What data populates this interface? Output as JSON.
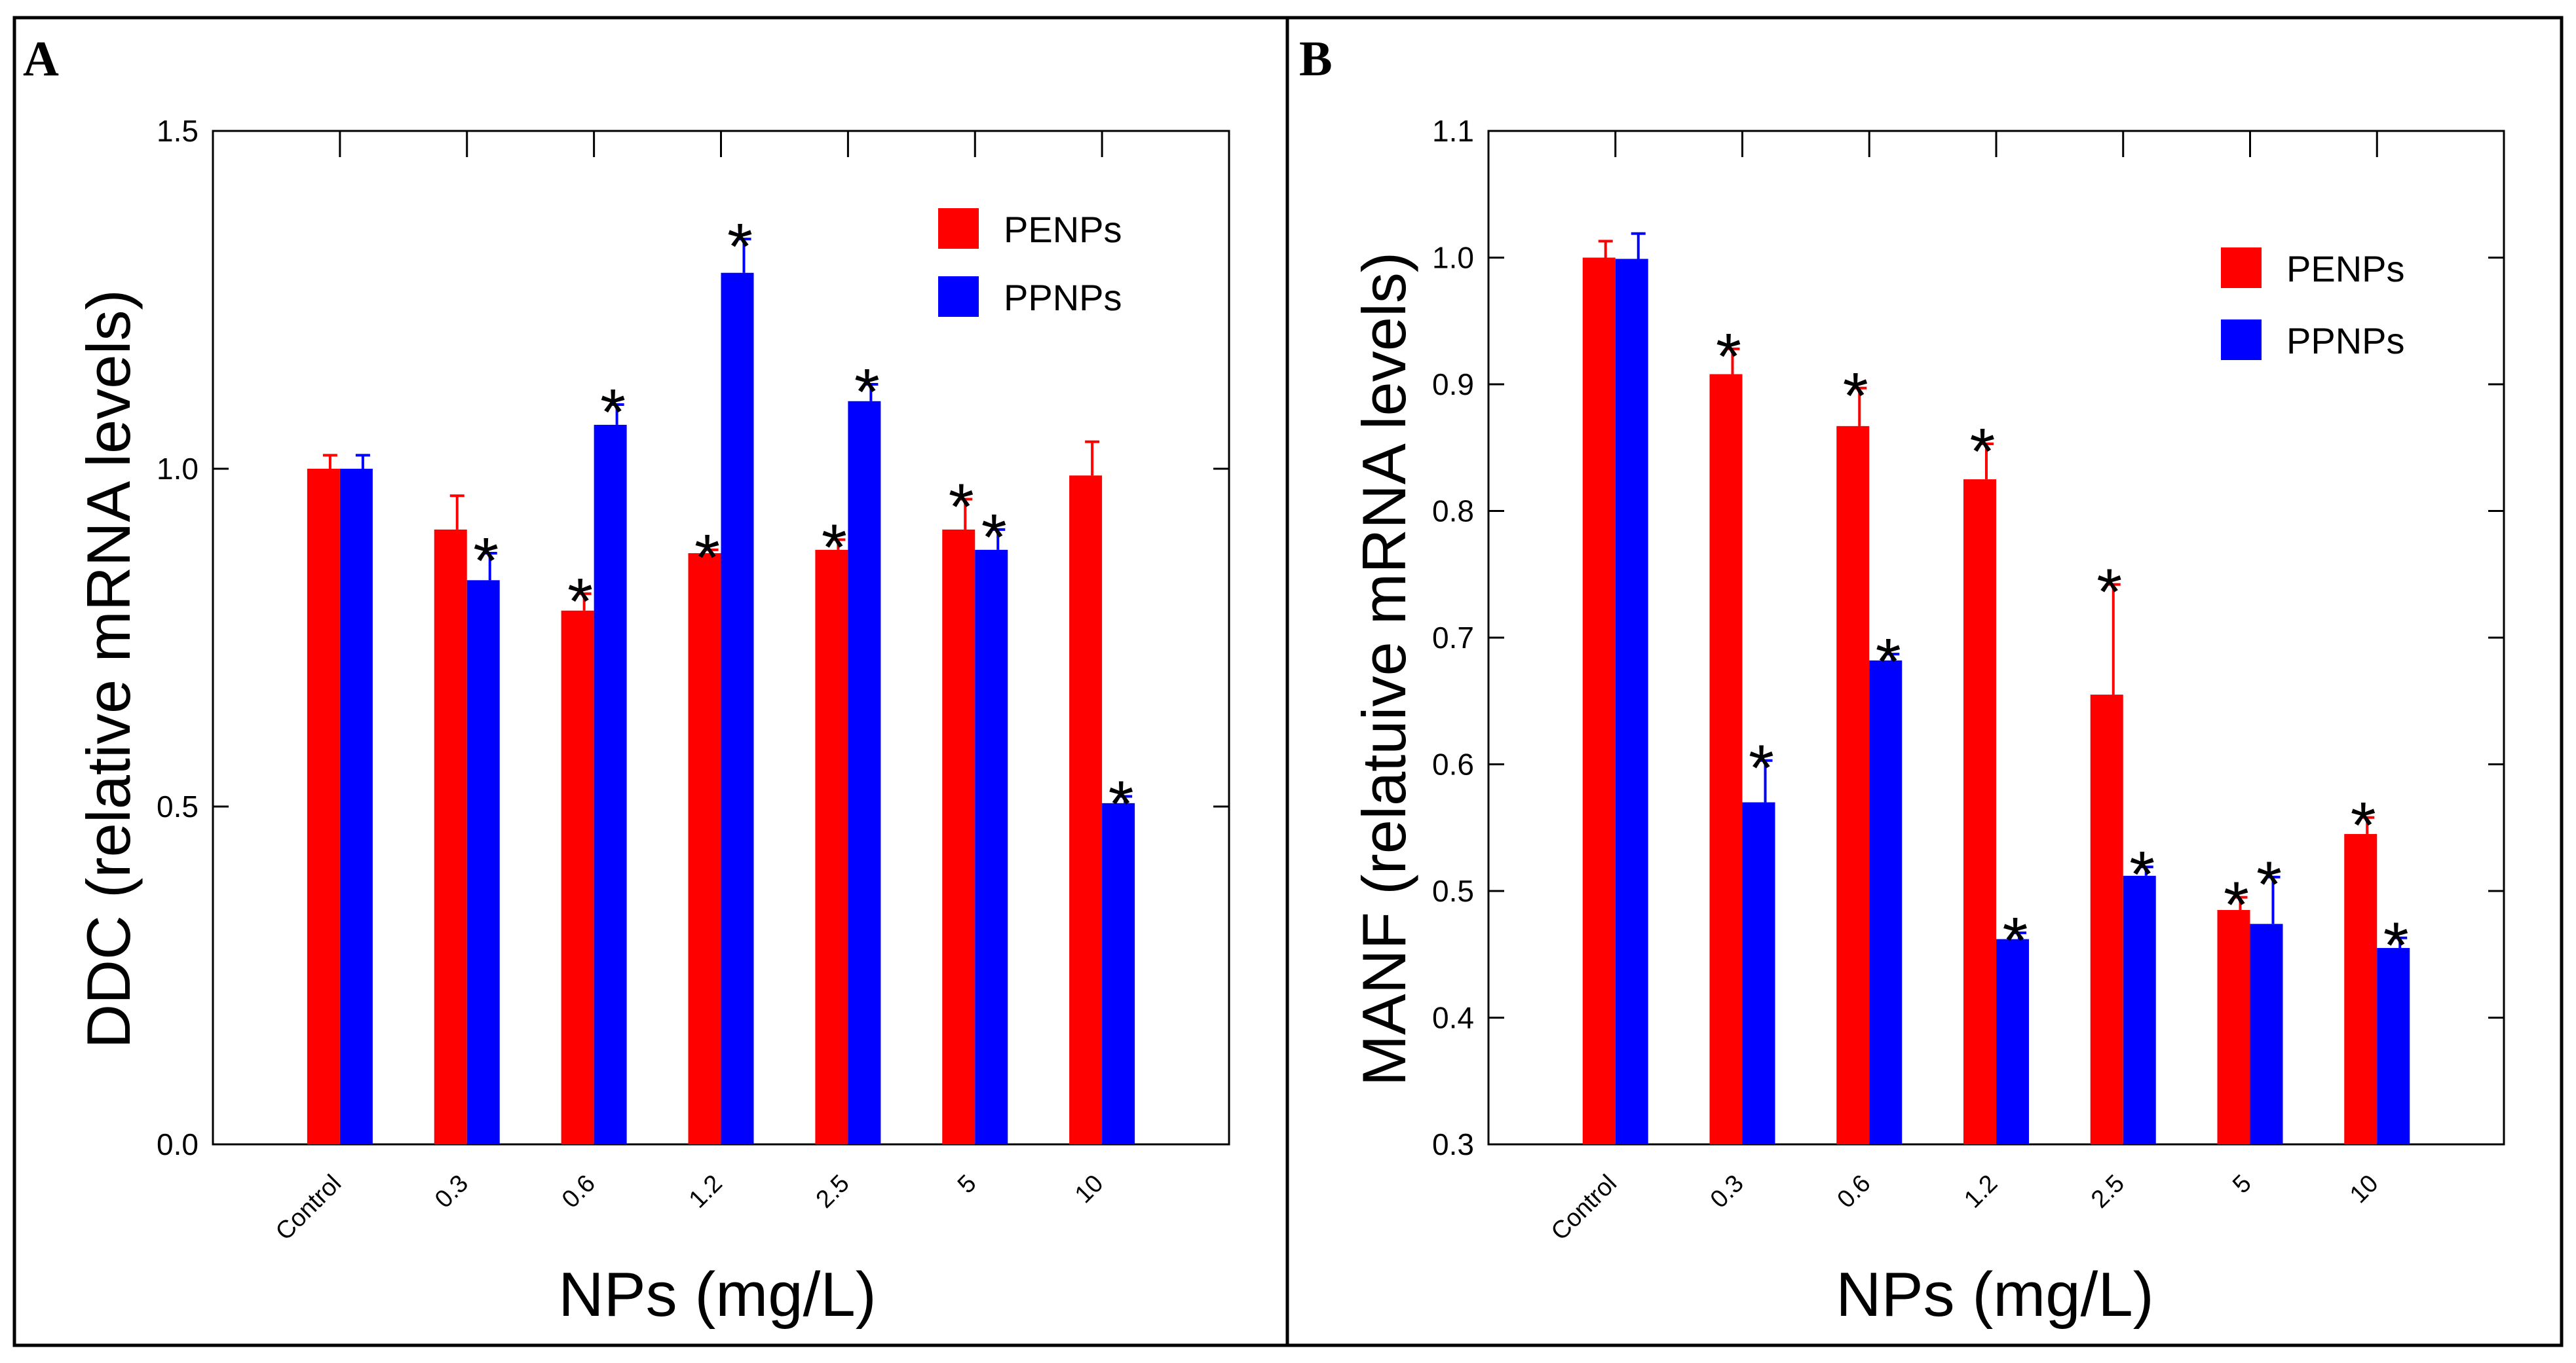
{
  "colors": {
    "penps": "#ff0000",
    "ppnps": "#0000ff",
    "axis": "#000000"
  },
  "chart_data": [
    {
      "type": "bar",
      "panel_label": "A",
      "xlabel": "NPs (mg/L)",
      "ylabel": "DDC (relative mRNA levels)",
      "ylim": [
        0.0,
        1.5
      ],
      "yticks": [
        0.0,
        0.5,
        1.0,
        1.5
      ],
      "ytick_labels": [
        "0.0",
        "0.5",
        "1.0",
        "1.5"
      ],
      "categories": [
        "Control",
        "0.3",
        "0.6",
        "1.2",
        "2.5",
        "5",
        "10"
      ],
      "legend": "top-right",
      "series": [
        {
          "name": "PENPs",
          "color": "#ff0000",
          "values": [
            1.0,
            0.91,
            0.79,
            0.875,
            0.88,
            0.91,
            0.99
          ],
          "errors": [
            0.02,
            0.05,
            0.025,
            0.005,
            0.015,
            0.045,
            0.05
          ],
          "significant": [
            false,
            false,
            true,
            true,
            true,
            true,
            false
          ]
        },
        {
          "name": "PPNPs",
          "color": "#0000ff",
          "values": [
            1.0,
            0.835,
            1.065,
            1.29,
            1.1,
            0.88,
            0.505
          ],
          "errors": [
            0.02,
            0.04,
            0.03,
            0.05,
            0.025,
            0.03,
            0.01
          ],
          "significant": [
            false,
            true,
            true,
            true,
            true,
            true,
            true
          ]
        }
      ],
      "annotation_symbol": "*"
    },
    {
      "type": "bar",
      "panel_label": "B",
      "xlabel": "NPs (mg/L)",
      "ylabel": "MANF (relatuive mRNA levels)",
      "ylim": [
        0.3,
        1.1
      ],
      "yticks": [
        0.3,
        0.4,
        0.5,
        0.6,
        0.7,
        0.8,
        0.9,
        1.0,
        1.1
      ],
      "ytick_labels": [
        "0.3",
        "0.4",
        "0.5",
        "0.6",
        "0.7",
        "0.8",
        "0.9",
        "1.0",
        "1.1"
      ],
      "categories": [
        "Control",
        "0.3",
        "0.6",
        "1.2",
        "2.5",
        "5",
        "10"
      ],
      "legend": "top-right",
      "series": [
        {
          "name": "PENPs",
          "color": "#ff0000",
          "values": [
            1.0,
            0.908,
            0.867,
            0.825,
            0.655,
            0.485,
            0.545
          ],
          "errors": [
            0.013,
            0.02,
            0.03,
            0.028,
            0.087,
            0.01,
            0.013
          ],
          "significant": [
            false,
            true,
            true,
            true,
            true,
            true,
            true
          ]
        },
        {
          "name": "PPNPs",
          "color": "#0000ff",
          "values": [
            0.999,
            0.57,
            0.682,
            0.462,
            0.512,
            0.474,
            0.455
          ],
          "errors": [
            0.02,
            0.033,
            0.005,
            0.005,
            0.007,
            0.037,
            0.008
          ],
          "significant": [
            false,
            true,
            true,
            true,
            true,
            true,
            true
          ]
        }
      ],
      "annotation_symbol": "*"
    }
  ]
}
